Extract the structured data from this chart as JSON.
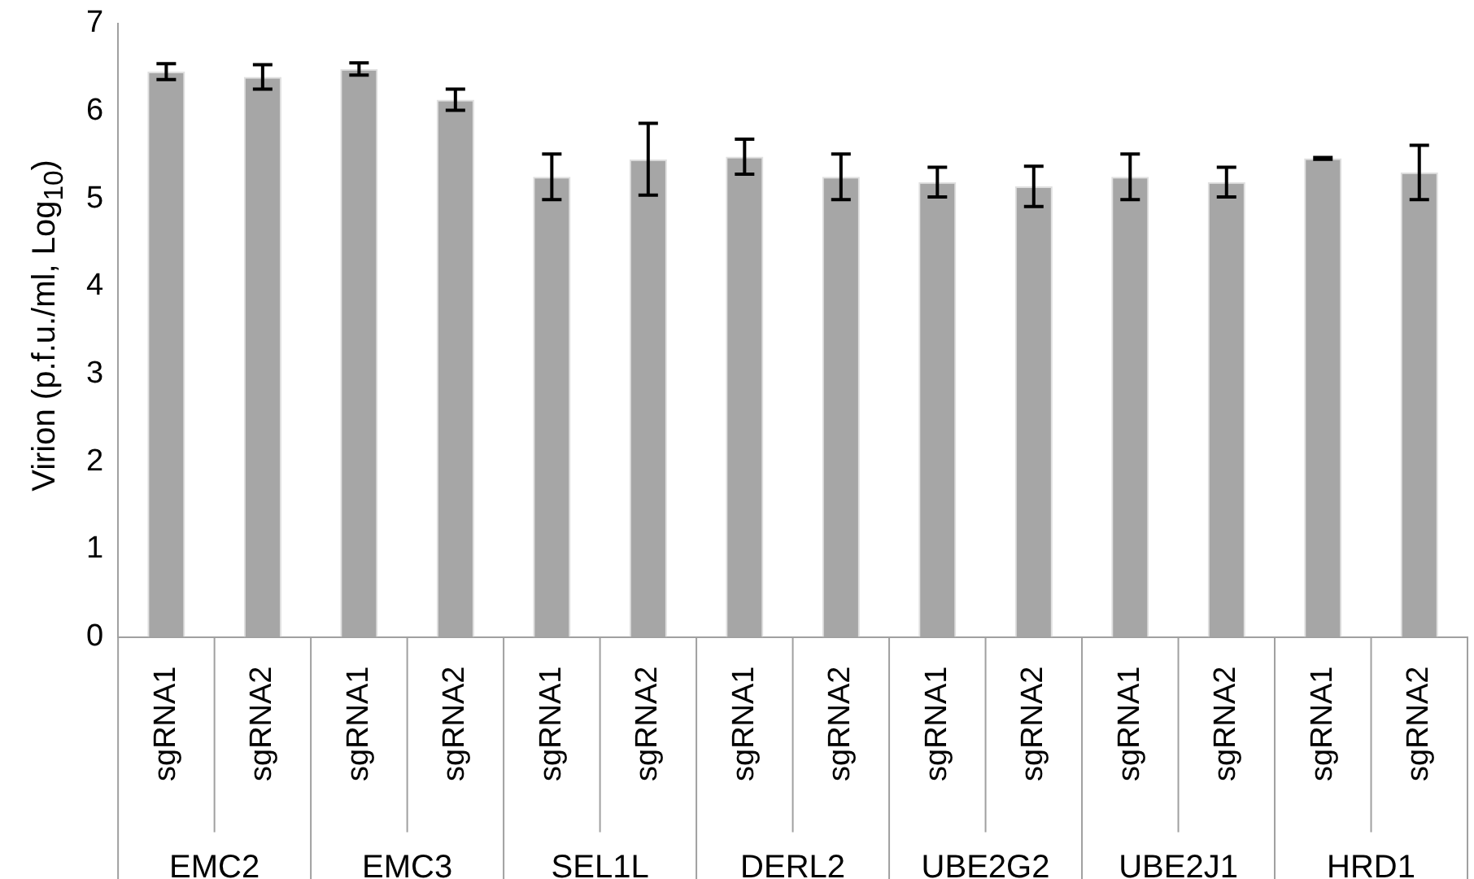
{
  "chart_data": {
    "type": "bar",
    "ylabel": "Virion (p.f.u./ml, Log$_{10}$)",
    "categories": [
      "sgRNA1",
      "sgRNA2",
      "sgRNA1",
      "sgRNA2",
      "sgRNA1",
      "sgRNA2",
      "sgRNA1",
      "sgRNA2",
      "sgRNA1",
      "sgRNA2",
      "sgRNA1",
      "sgRNA2",
      "sgRNA1",
      "sgRNA2"
    ],
    "values": [
      6.45,
      6.39,
      6.48,
      6.13,
      5.25,
      5.45,
      5.48,
      5.25,
      5.19,
      5.14,
      5.25,
      5.19,
      5.46,
      5.3
    ],
    "errors": [
      0.09,
      0.14,
      0.07,
      0.12,
      0.26,
      0.41,
      0.2,
      0.26,
      0.17,
      0.23,
      0.26,
      0.17,
      0.01,
      0.31
    ],
    "color": "#a6a6a6",
    "annotations": [
      "EMC2",
      "EMC3",
      "SEL1L",
      "DERL2",
      "UBE2G2",
      "UBE2J1",
      "HRD1"
    ],
    "ylim": [
      0,
      7
    ],
    "yticks": [
      0,
      1,
      2,
      3,
      4,
      5,
      6,
      7
    ],
    "grid": false,
    "legend": false
  }
}
